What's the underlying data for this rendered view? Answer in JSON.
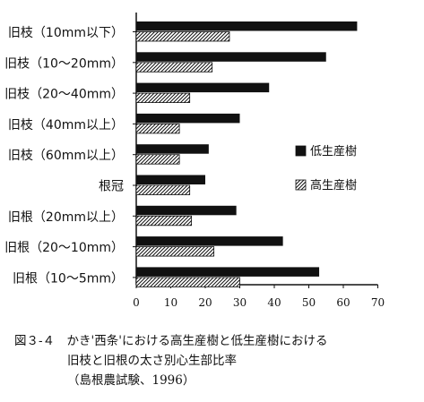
{
  "chart_data": {
    "type": "bar",
    "orientation": "horizontal",
    "categories": [
      "旧枝（10mm以下）",
      "旧枝（10～20mm）",
      "旧枝（20～40mm）",
      "旧枝（40mm以上）",
      "旧枝（60mm以上）",
      "根冠",
      "旧根（20mm以上）",
      "旧根（20～10mm）",
      "旧根（10～5mm）"
    ],
    "series": [
      {
        "name": "低生産樹",
        "pattern": "solid",
        "color": "#111111",
        "values": [
          64,
          55,
          38.5,
          30,
          21,
          20,
          29,
          42.5,
          53
        ]
      },
      {
        "name": "高生産樹",
        "pattern": "hatched",
        "color": "#111111",
        "values": [
          27,
          22,
          15.5,
          12.5,
          12.5,
          15.5,
          16,
          22.5,
          30
        ]
      }
    ],
    "xlim": [
      0,
      70
    ],
    "xticks": [
      0,
      10,
      20,
      30,
      40,
      50,
      60,
      70
    ],
    "legend_position": "right",
    "grid": false
  },
  "caption": {
    "line1": "図３‐４　かき'西条'における高生産樹と低生産樹における",
    "line2": "旧枝と旧根の太さ別心生部比率",
    "line3": "（島根農試験、1996）"
  }
}
